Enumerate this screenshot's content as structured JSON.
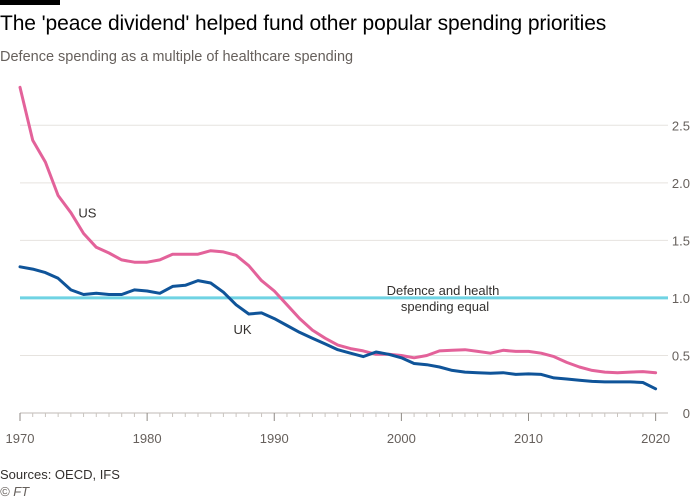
{
  "header": {
    "title": "The 'peace dividend' helped fund other popular spending priorities",
    "subtitle": "Defence spending as a multiple of healthcare spending"
  },
  "footer": {
    "source": "Sources: OECD, IFS",
    "credit": "© FT"
  },
  "colors": {
    "us": "#e3629a",
    "uk": "#0f5499",
    "reference": "#6fd3e3",
    "grid": "#e6e3df",
    "axis": "#66605c"
  },
  "chart_data": {
    "type": "line",
    "title": "",
    "xlabel": "",
    "ylabel": "",
    "xlim": [
      1970,
      2020.5
    ],
    "ylim": [
      0,
      2.85
    ],
    "x_ticks": [
      1970,
      1980,
      1990,
      2000,
      2010,
      2020
    ],
    "y_ticks": [
      0,
      0.5,
      1.0,
      1.5,
      2.0,
      2.5
    ],
    "y_tick_labels": [
      "0",
      "0.5",
      "1.0",
      "1.5",
      "2.0",
      "2.5"
    ],
    "grid": true,
    "reference_line": {
      "y": 1.0,
      "label_line1": "Defence and health",
      "label_line2": "spending equal"
    },
    "series": [
      {
        "name": "US",
        "x": [
          1970,
          1971,
          1972,
          1973,
          1974,
          1975,
          1976,
          1977,
          1978,
          1979,
          1980,
          1981,
          1982,
          1983,
          1984,
          1985,
          1986,
          1987,
          1988,
          1989,
          1990,
          1991,
          1992,
          1993,
          1994,
          1995,
          1996,
          1997,
          1998,
          1999,
          2000,
          2001,
          2002,
          2003,
          2004,
          2005,
          2006,
          2007,
          2008,
          2009,
          2010,
          2011,
          2012,
          2013,
          2014,
          2015,
          2016,
          2017,
          2018,
          2019,
          2020
        ],
        "y": [
          2.83,
          2.37,
          2.18,
          1.89,
          1.74,
          1.56,
          1.44,
          1.39,
          1.33,
          1.31,
          1.31,
          1.33,
          1.38,
          1.38,
          1.38,
          1.41,
          1.4,
          1.37,
          1.28,
          1.15,
          1.06,
          0.94,
          0.82,
          0.72,
          0.65,
          0.59,
          0.56,
          0.54,
          0.51,
          0.51,
          0.5,
          0.48,
          0.5,
          0.54,
          0.545,
          0.55,
          0.535,
          0.52,
          0.545,
          0.535,
          0.535,
          0.52,
          0.49,
          0.44,
          0.4,
          0.37,
          0.355,
          0.35,
          0.355,
          0.36,
          0.35
        ]
      },
      {
        "name": "UK",
        "x": [
          1970,
          1971,
          1972,
          1973,
          1974,
          1975,
          1976,
          1977,
          1978,
          1979,
          1980,
          1981,
          1982,
          1983,
          1984,
          1985,
          1986,
          1987,
          1988,
          1989,
          1990,
          1991,
          1992,
          1993,
          1994,
          1995,
          1996,
          1997,
          1998,
          1999,
          2000,
          2001,
          2002,
          2003,
          2004,
          2005,
          2006,
          2007,
          2008,
          2009,
          2010,
          2011,
          2012,
          2013,
          2014,
          2015,
          2016,
          2017,
          2018,
          2019,
          2020
        ],
        "y": [
          1.27,
          1.25,
          1.22,
          1.17,
          1.07,
          1.03,
          1.04,
          1.03,
          1.03,
          1.07,
          1.06,
          1.04,
          1.1,
          1.11,
          1.15,
          1.13,
          1.05,
          0.94,
          0.86,
          0.87,
          0.82,
          0.76,
          0.7,
          0.65,
          0.6,
          0.55,
          0.52,
          0.49,
          0.53,
          0.51,
          0.48,
          0.43,
          0.42,
          0.4,
          0.37,
          0.355,
          0.35,
          0.345,
          0.35,
          0.335,
          0.34,
          0.335,
          0.305,
          0.295,
          0.285,
          0.275,
          0.27,
          0.27,
          0.27,
          0.265,
          0.21
        ]
      }
    ],
    "series_labels": [
      {
        "text": "US",
        "x": 1975.3,
        "y": 1.74
      },
      {
        "text": "UK",
        "x": 1987.5,
        "y": 0.73
      }
    ]
  }
}
